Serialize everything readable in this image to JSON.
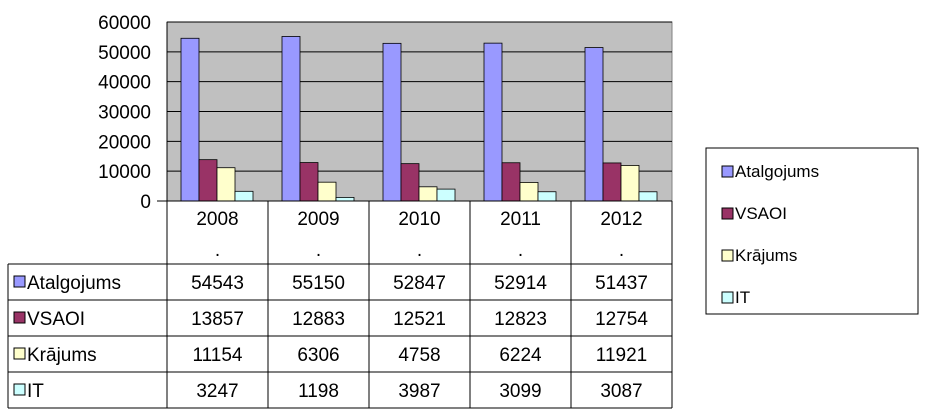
{
  "chart_data": {
    "type": "bar",
    "categories": [
      "2008",
      "2009",
      "2010",
      "2011",
      "2012"
    ],
    "category_suffix": ".",
    "series": [
      {
        "name": "Atalgojums",
        "color": "#9999ff",
        "values": [
          54543,
          55150,
          52847,
          52914,
          51437
        ]
      },
      {
        "name": "VSAOI",
        "color": "#993366",
        "values": [
          13857,
          12883,
          12521,
          12823,
          12754
        ]
      },
      {
        "name": "Krājums",
        "color": "#ffffcc",
        "values": [
          11154,
          6306,
          4758,
          6224,
          11921
        ]
      },
      {
        "name": "IT",
        "color": "#ccffff",
        "values": [
          3247,
          1198,
          3987,
          3099,
          3087
        ]
      }
    ],
    "ylim": [
      0,
      60000
    ],
    "yticks": [
      "0",
      "10000",
      "20000",
      "30000",
      "40000",
      "50000",
      "60000"
    ],
    "grid": true,
    "plot_background": "#c0c0c0",
    "data_table": true,
    "legend_position": "right"
  }
}
